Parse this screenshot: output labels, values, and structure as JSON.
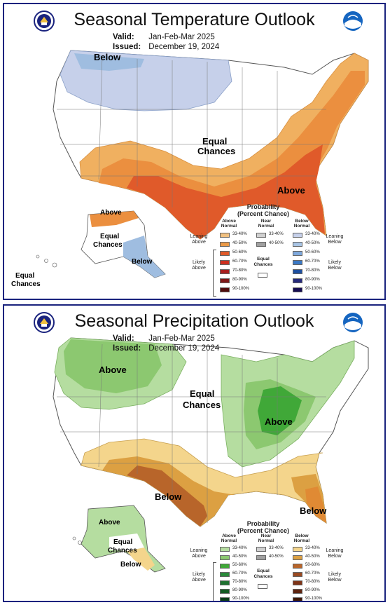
{
  "colors": {
    "frame": "#1a237e",
    "below_temp_33_40": "#c6d0ea",
    "below_temp_40_50": "#9fbde0",
    "above_temp_33_40": "#f0b060",
    "above_temp_40_50": "#eb8f3f",
    "above_temp_50_60": "#e05a2a",
    "above_precip_33_40": "#b5dda0",
    "above_precip_40_50": "#8cc870",
    "above_precip_50_60": "#40a838",
    "below_precip_33_40": "#f4d58c",
    "below_precip_40_50": "#dca042",
    "below_precip_50_60": "#b8652a"
  },
  "temperature": {
    "title": "Seasonal Temperature Outlook",
    "valid_label": "Valid:",
    "valid_value": "Jan-Feb-Mar 2025",
    "issued_label": "Issued:",
    "issued_value": "December 19, 2024",
    "seal_icon": "commerce-seal-icon",
    "noaa_icon": "noaa-logo-icon",
    "map_labels": {
      "below_nw": "Below",
      "equal_1": "Equal",
      "equal_2": "Chances",
      "above_se": "Above",
      "ak_above": "Above",
      "ak_equal_1": "Equal",
      "ak_equal_2": "Chances",
      "ak_below": "Below",
      "hi_equal_1": "Equal",
      "hi_equal_2": "Chances"
    },
    "legend": {
      "title_1": "Probability",
      "title_2": "(Percent Chance)",
      "col_above": [
        "Above",
        "Normal"
      ],
      "col_near": [
        "Near",
        "Normal"
      ],
      "col_below": [
        "Below",
        "Normal"
      ],
      "leaning_above": [
        "Leaning",
        "Above"
      ],
      "likely_above": [
        "Likely",
        "Above"
      ],
      "leaning_below": [
        "Leaning",
        "Below"
      ],
      "likely_below": [
        "Likely",
        "Below"
      ],
      "equal_chances": [
        "Equal",
        "Chances"
      ],
      "above": [
        {
          "label": "33-40%",
          "color": "#f0c080"
        },
        {
          "label": "40-50%",
          "color": "#eb9a48"
        },
        {
          "label": "50-60%",
          "color": "#e05a2a"
        },
        {
          "label": "60-70%",
          "color": "#cc3020"
        },
        {
          "label": "70-80%",
          "color": "#a82020"
        },
        {
          "label": "80-90%",
          "color": "#801818"
        },
        {
          "label": "90-100%",
          "color": "#500c0c"
        }
      ],
      "near": [
        {
          "label": "33-40%",
          "color": "#d0d0d0"
        },
        {
          "label": "40-50%",
          "color": "#a0a0a0"
        }
      ],
      "below": [
        {
          "label": "33-40%",
          "color": "#c6d0ea"
        },
        {
          "label": "40-50%",
          "color": "#a8c4e4"
        },
        {
          "label": "50-60%",
          "color": "#7ea8dc"
        },
        {
          "label": "60-70%",
          "color": "#3b78c4"
        },
        {
          "label": "70-80%",
          "color": "#1e50a0"
        },
        {
          "label": "80-90%",
          "color": "#262a7c"
        },
        {
          "label": "90-100%",
          "color": "#160c50"
        }
      ]
    }
  },
  "precipitation": {
    "title": "Seasonal Precipitation Outlook",
    "valid_label": "Valid:",
    "valid_value": "Jan-Feb-Mar 2025",
    "issued_label": "Issued:",
    "issued_value": "December 19, 2024",
    "seal_icon": "commerce-seal-icon",
    "noaa_icon": "noaa-logo-icon",
    "map_labels": {
      "above_nw": "Above",
      "equal_1": "Equal",
      "equal_2": "Chances",
      "above_gl": "Above",
      "below_sw": "Below",
      "below_fl": "Below",
      "ak_above": "Above",
      "ak_equal_1": "Equal",
      "ak_equal_2": "Chances",
      "ak_below": "Below"
    },
    "legend": {
      "title_1": "Probability",
      "title_2": "(Percent Chance)",
      "col_above": [
        "Above",
        "Normal"
      ],
      "col_near": [
        "Near",
        "Normal"
      ],
      "col_below": [
        "Below",
        "Normal"
      ],
      "leaning_above": [
        "Leaning",
        "Above"
      ],
      "likely_above": [
        "Likely",
        "Above"
      ],
      "leaning_below": [
        "Leaning",
        "Below"
      ],
      "likely_below": [
        "Likely",
        "Below"
      ],
      "equal_chances": [
        "Equal",
        "Chances"
      ],
      "above": [
        {
          "label": "33-40%",
          "color": "#b5dda0"
        },
        {
          "label": "40-50%",
          "color": "#8cc870"
        },
        {
          "label": "50-60%",
          "color": "#40a838"
        },
        {
          "label": "60-70%",
          "color": "#2a8a3a"
        },
        {
          "label": "70-80%",
          "color": "#1e7030"
        },
        {
          "label": "80-90%",
          "color": "#145a24"
        },
        {
          "label": "90-100%",
          "color": "#0c3c18"
        }
      ],
      "near": [
        {
          "label": "33-40%",
          "color": "#d0d0d0"
        },
        {
          "label": "40-50%",
          "color": "#a0a0a0"
        }
      ],
      "below": [
        {
          "label": "33-40%",
          "color": "#f4d58c"
        },
        {
          "label": "40-50%",
          "color": "#dca042"
        },
        {
          "label": "50-60%",
          "color": "#b8652a"
        },
        {
          "label": "60-70%",
          "color": "#9a4a22"
        },
        {
          "label": "70-80%",
          "color": "#7e3418"
        },
        {
          "label": "80-90%",
          "color": "#5e2410"
        },
        {
          "label": "90-100%",
          "color": "#3e1808"
        }
      ]
    }
  }
}
